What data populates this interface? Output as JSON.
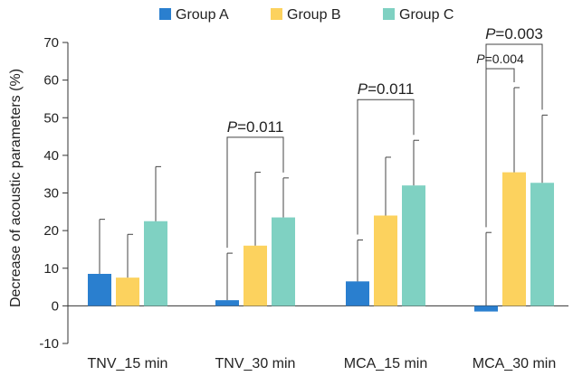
{
  "chart_data": {
    "type": "bar",
    "ylabel": "Decrease of acoustic parameters (%)",
    "xlabel": "",
    "ylim": [
      -10,
      70
    ],
    "yticks": [
      -10,
      0,
      10,
      20,
      30,
      40,
      50,
      60,
      70
    ],
    "legend_position": "top-center",
    "grid": false,
    "categories": [
      "TNV_15 min",
      "TNV_30 min",
      "MCA_15 min",
      "MCA_30 min"
    ],
    "series": [
      {
        "name": "Group A",
        "color": "#2a7fcf",
        "values": [
          8.5,
          1.5,
          6.5,
          -1.5
        ],
        "error": [
          14.5,
          12.5,
          11,
          19.5
        ]
      },
      {
        "name": "Group B",
        "color": "#fcd25e",
        "values": [
          7.5,
          16.0,
          24.0,
          35.5
        ],
        "error": [
          11.5,
          19.5,
          15.5,
          22.5
        ]
      },
      {
        "name": "Group C",
        "color": "#7fd1c2",
        "values": [
          22.5,
          23.5,
          32.0,
          32.7
        ],
        "error": [
          14.5,
          10.5,
          12.0,
          18.0
        ]
      }
    ],
    "annotations": [
      {
        "category": 1,
        "from_series": 0,
        "to_series": 2,
        "label": "=0.011",
        "level": 0
      },
      {
        "category": 2,
        "from_series": 0,
        "to_series": 2,
        "label": "=0.011",
        "level": 0
      },
      {
        "category": 3,
        "from_series": 0,
        "to_series": 2,
        "label": "=0.003",
        "level": 1
      },
      {
        "category": 3,
        "from_series": 0,
        "to_series": 1,
        "label": "=0.004",
        "level": 0
      }
    ],
    "annotation_prefix": "P"
  }
}
